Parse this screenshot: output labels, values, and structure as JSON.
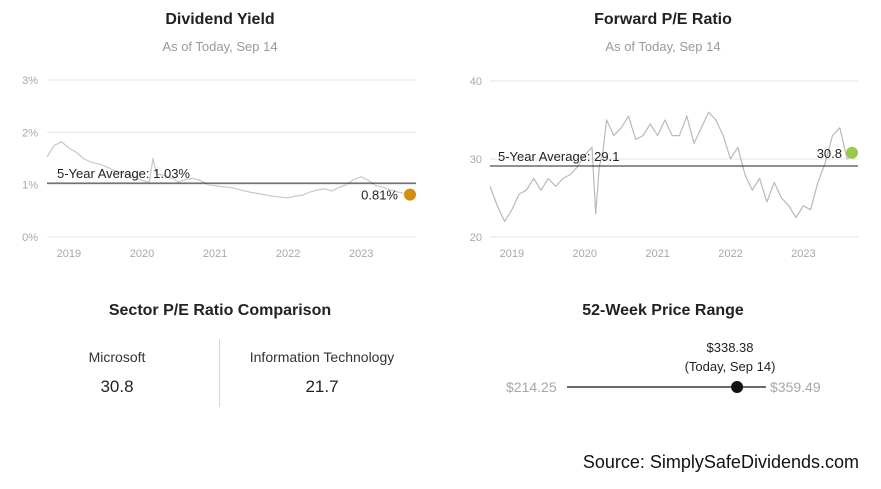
{
  "chart_data": [
    {
      "type": "line",
      "title": "Dividend Yield",
      "subtitle": "As of Today, Sep 14",
      "y_ticks": [
        "0%",
        "1%",
        "2%",
        "3%"
      ],
      "ylim": [
        0,
        3
      ],
      "x_ticks": [
        "2019",
        "2020",
        "2021",
        "2022",
        "2023"
      ],
      "xlim": [
        2018.7,
        2023.75
      ],
      "grid": true,
      "color": "#c8c8c8",
      "series": [
        {
          "x": [
            2018.7,
            2018.8,
            2018.9,
            2019.0,
            2019.1,
            2019.2,
            2019.3,
            2019.4,
            2019.5,
            2019.6,
            2019.7,
            2019.8,
            2019.9,
            2020.0,
            2020.1,
            2020.15,
            2020.2,
            2020.3,
            2020.4,
            2020.5,
            2020.6,
            2020.7,
            2020.8,
            2020.9,
            2021.0,
            2021.1,
            2021.2,
            2021.3,
            2021.4,
            2021.5,
            2021.6,
            2021.7,
            2021.8,
            2021.9,
            2022.0,
            2022.1,
            2022.2,
            2022.3,
            2022.4,
            2022.5,
            2022.6,
            2022.7,
            2022.8,
            2022.9,
            2023.0,
            2023.1,
            2023.2,
            2023.3,
            2023.4,
            2023.5,
            2023.6,
            2023.7
          ],
          "y": [
            1.53,
            1.75,
            1.82,
            1.7,
            1.62,
            1.5,
            1.43,
            1.4,
            1.35,
            1.28,
            1.24,
            1.2,
            1.15,
            1.08,
            1.05,
            1.5,
            1.2,
            1.18,
            1.13,
            1.05,
            1.1,
            1.12,
            1.08,
            1.0,
            0.98,
            0.96,
            0.95,
            0.92,
            0.88,
            0.85,
            0.83,
            0.8,
            0.78,
            0.76,
            0.75,
            0.78,
            0.8,
            0.86,
            0.9,
            0.92,
            0.88,
            0.95,
            1.0,
            1.1,
            1.15,
            1.08,
            0.98,
            0.95,
            0.9,
            0.86,
            0.83,
            0.81
          ]
        }
      ],
      "reference_line": {
        "value": 1.03,
        "label": "5-Year Average: 1.03%"
      },
      "current": {
        "label": "0.81%",
        "value": 0.81,
        "color": "#d48f0d"
      }
    },
    {
      "type": "line",
      "title": "Forward P/E Ratio",
      "subtitle": "As of Today, Sep 14",
      "y_ticks": [
        "20",
        "30",
        "40"
      ],
      "ylim": [
        20,
        40
      ],
      "x_ticks": [
        "2019",
        "2020",
        "2021",
        "2022",
        "2023"
      ],
      "xlim": [
        2018.7,
        2023.75
      ],
      "grid": true,
      "color": "#b9b9b9",
      "series": [
        {
          "x": [
            2018.7,
            2018.8,
            2018.9,
            2019.0,
            2019.1,
            2019.2,
            2019.3,
            2019.4,
            2019.5,
            2019.6,
            2019.7,
            2019.8,
            2019.9,
            2020.0,
            2020.1,
            2020.15,
            2020.2,
            2020.25,
            2020.3,
            2020.4,
            2020.5,
            2020.6,
            2020.7,
            2020.8,
            2020.9,
            2021.0,
            2021.1,
            2021.2,
            2021.3,
            2021.4,
            2021.5,
            2021.6,
            2021.7,
            2021.8,
            2021.9,
            2022.0,
            2022.1,
            2022.2,
            2022.3,
            2022.4,
            2022.5,
            2022.6,
            2022.7,
            2022.8,
            2022.9,
            2023.0,
            2023.1,
            2023.2,
            2023.3,
            2023.4,
            2023.5,
            2023.6,
            2023.7
          ],
          "y": [
            26.5,
            24.0,
            22.0,
            23.5,
            25.5,
            26.0,
            27.5,
            26.0,
            27.5,
            26.5,
            27.5,
            28.0,
            29.0,
            30.5,
            31.5,
            23.0,
            29.0,
            31.0,
            35.0,
            33.0,
            34.0,
            35.5,
            32.5,
            33.0,
            34.5,
            33.0,
            35.0,
            33.0,
            33.0,
            35.5,
            32.0,
            34.0,
            36.0,
            35.0,
            33.0,
            30.0,
            31.5,
            28.0,
            26.0,
            27.5,
            24.5,
            27.0,
            25.0,
            24.0,
            22.5,
            24.0,
            23.5,
            27.0,
            29.5,
            33.0,
            34.0,
            30.0,
            30.8
          ]
        }
      ],
      "reference_line": {
        "value": 29.1,
        "label": "5-Year Average: 29.1"
      },
      "current": {
        "label": "30.8",
        "value": 30.8,
        "color": "#9cc84a"
      }
    }
  ],
  "sector": {
    "title": "Sector P/E Ratio Comparison",
    "left_label": "Microsoft",
    "left_value": "30.8",
    "right_label": "Information Technology",
    "right_value": "21.7"
  },
  "price_range": {
    "title": "52-Week Price Range",
    "current_price": "$338.38",
    "current_note": "(Today, Sep 14)",
    "low": "$214.25",
    "high": "$359.49",
    "low_value": 214.25,
    "high_value": 359.49,
    "current_value": 338.38
  },
  "source": "Source: SimplySafeDividends.com"
}
